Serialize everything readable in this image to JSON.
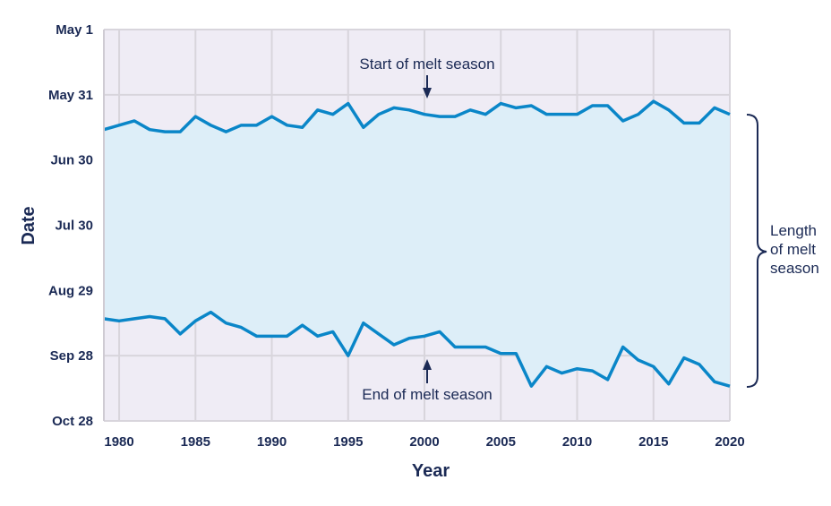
{
  "chart_data": {
    "type": "area",
    "xlabel": "Year",
    "ylabel": "Date",
    "xlim": [
      1979,
      2020
    ],
    "ylim": [
      "May 1",
      "Oct 28"
    ],
    "x_ticks": [
      "1980",
      "1985",
      "1990",
      "1995",
      "2000",
      "2005",
      "2010",
      "2015",
      "2020"
    ],
    "y_ticks": [
      "May 1",
      "May 31",
      "Jun 30",
      "Jul 30",
      "Aug 29",
      "Sep 28",
      "Oct 28"
    ],
    "grid": true,
    "years": [
      1979,
      1980,
      1981,
      1982,
      1983,
      1984,
      1985,
      1986,
      1987,
      1988,
      1989,
      1990,
      1991,
      1992,
      1993,
      1994,
      1995,
      1996,
      1997,
      1998,
      1999,
      2000,
      2001,
      2002,
      2003,
      2004,
      2005,
      2006,
      2007,
      2008,
      2009,
      2010,
      2011,
      2012,
      2013,
      2014,
      2015,
      2016,
      2017,
      2018,
      2019,
      2020
    ],
    "series": [
      {
        "name": "Start of melt season",
        "values": [
          "Jun 16",
          "Jun 14",
          "Jun 12",
          "Jun 16",
          "Jun 17",
          "Jun 17",
          "Jun 10",
          "Jun 14",
          "Jun 17",
          "Jun 14",
          "Jun 14",
          "Jun 10",
          "Jun 14",
          "Jun 15",
          "Jun 7",
          "Jun 9",
          "Jun 4",
          "Jun 15",
          "Jun 9",
          "Jun 6",
          "Jun 7",
          "Jun 9",
          "Jun 10",
          "Jun 10",
          "Jun 7",
          "Jun 9",
          "Jun 4",
          "Jun 6",
          "Jun 5",
          "Jun 9",
          "Jun 9",
          "Jun 9",
          "Jun 5",
          "Jun 5",
          "Jun 12",
          "Jun 9",
          "Jun 3",
          "Jun 7",
          "Jun 13",
          "Jun 13",
          "Jun 6",
          "Jun 9"
        ]
      },
      {
        "name": "End of melt season",
        "values": [
          "Sep 11",
          "Sep 12",
          "Sep 11",
          "Sep 10",
          "Sep 11",
          "Sep 18",
          "Sep 12",
          "Sep 8",
          "Sep 13",
          "Sep 15",
          "Sep 19",
          "Sep 19",
          "Sep 19",
          "Sep 14",
          "Sep 19",
          "Sep 17",
          "Sep 28",
          "Sep 13",
          "Sep 18",
          "Sep 23",
          "Sep 20",
          "Sep 19",
          "Sep 17",
          "Sep 24",
          "Sep 24",
          "Sep 24",
          "Sep 27",
          "Sep 27",
          "Oct 12",
          "Oct 3",
          "Oct 6",
          "Oct 4",
          "Oct 5",
          "Oct 9",
          "Sep 24",
          "Sep 30",
          "Oct 3",
          "Oct 11",
          "Sep 29",
          "Oct 2",
          "Oct 10",
          "Oct 12"
        ]
      }
    ],
    "annotations": {
      "start_label": "Start of melt season",
      "end_label": "End of melt season",
      "length_label": [
        "Length",
        "of melt",
        "season"
      ]
    },
    "colors": {
      "plot_bg": "#efecf5",
      "fill": "#ddeef8",
      "line": "#0a86c8",
      "text": "#1b2a55",
      "grid": "#d8d5dc"
    }
  }
}
